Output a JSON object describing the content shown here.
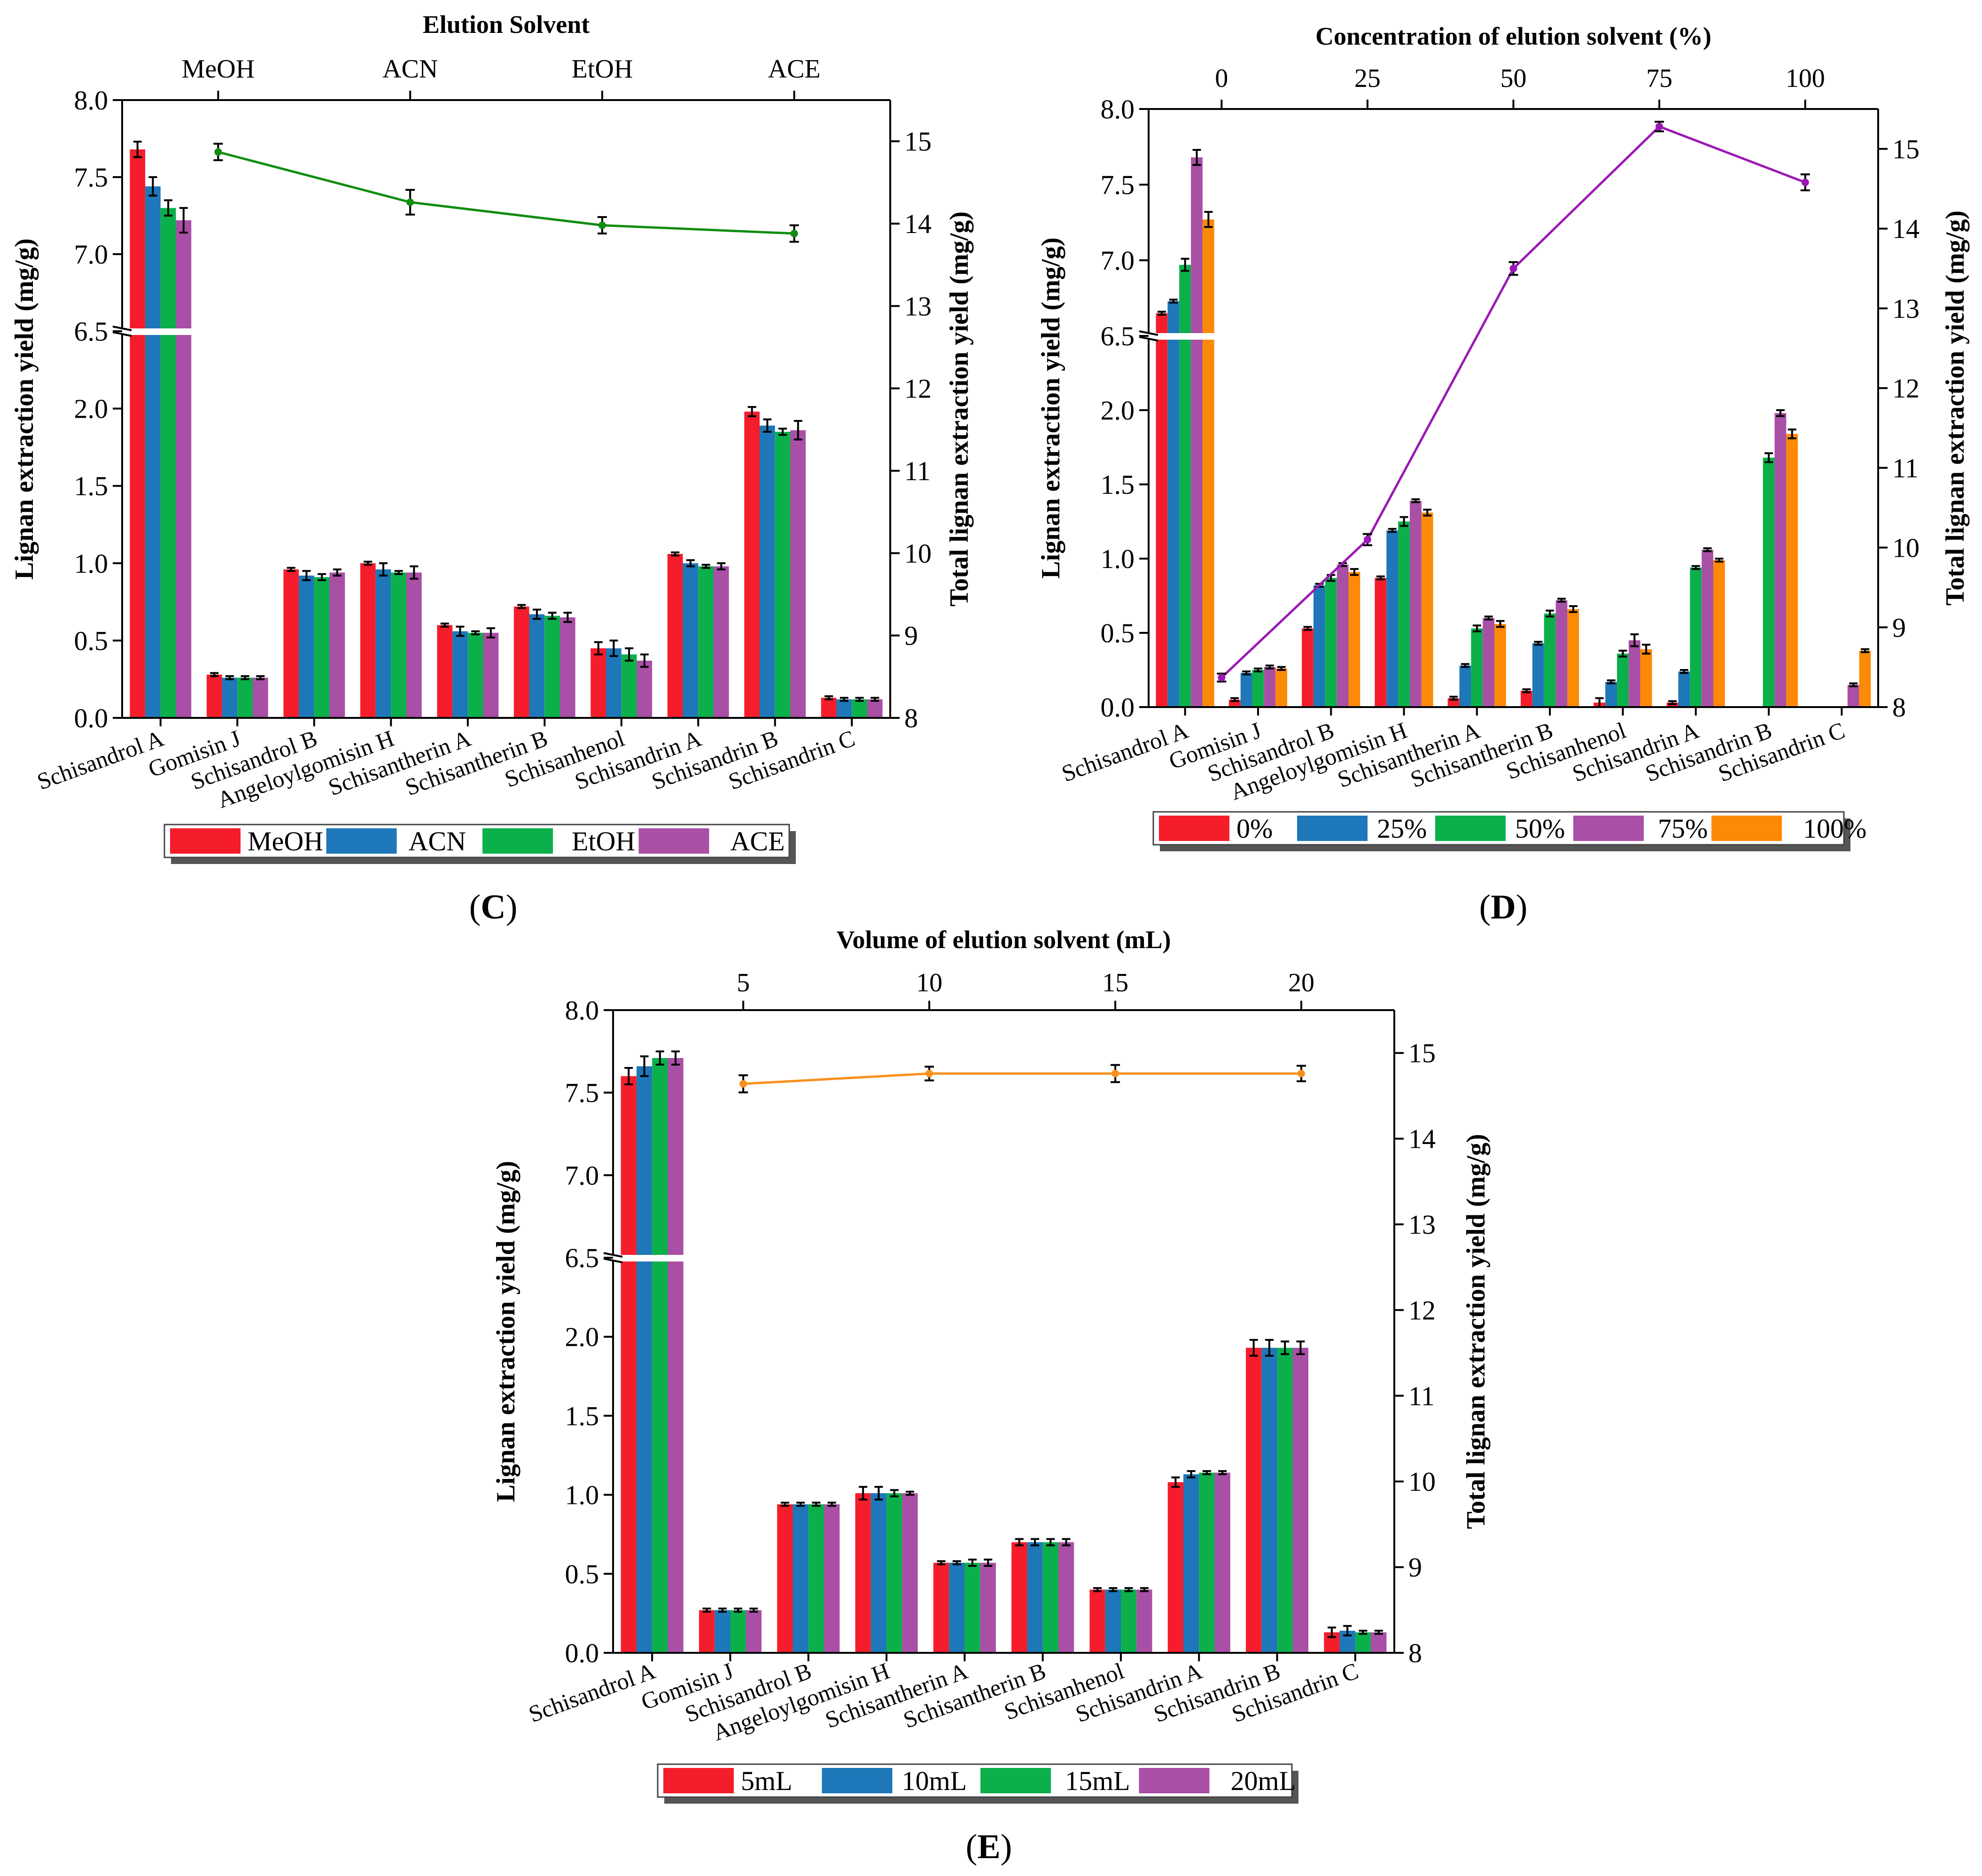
{
  "colors": {
    "red": "#f51d2b",
    "blue": "#1d77b8",
    "green": "#0bb04b",
    "purple": "#a94fa6",
    "orange": "#fd8a07"
  },
  "chart_data": [
    {
      "type": "bar",
      "panel_label": "C",
      "title": "",
      "top_axis_title": "Elution Solvent",
      "top_axis_categories": [
        "MeOH",
        "ACN",
        "EtOH",
        "ACE"
      ],
      "ylabel": "Lignan extraction yield (mg/g)",
      "y2label": "Total lignan extraction yield (mg/g)",
      "ylim_lower": [
        0,
        2.5
      ],
      "ylim_upper": [
        6.5,
        8.0
      ],
      "y_ticks": [
        "0.0",
        "0.5",
        "1.0",
        "1.5",
        "2.0",
        "6.5",
        "7.0",
        "7.5",
        "8.0"
      ],
      "y2lim": [
        8,
        15.5
      ],
      "y2_ticks": [
        "8",
        "9",
        "10",
        "11",
        "12",
        "13",
        "14",
        "15"
      ],
      "categories": [
        "Schisandrol A",
        "Gomisin J",
        "Schisandrol B",
        "Angeloylgomisin H",
        "Schisantherin A",
        "Schisantherin B",
        "Schisanhenol",
        "Schisandrin A",
        "Schisandrin B",
        "Schisandrin C"
      ],
      "series": [
        {
          "name": "MeOH",
          "color": "#f51d2b",
          "values": [
            7.68,
            0.28,
            0.96,
            1.0,
            0.6,
            0.72,
            0.45,
            1.06,
            1.98,
            0.13
          ],
          "errors": [
            0.05,
            0.01,
            0.01,
            0.01,
            0.01,
            0.01,
            0.04,
            0.01,
            0.03,
            0.01
          ]
        },
        {
          "name": "ACN",
          "color": "#1d77b8",
          "values": [
            7.44,
            0.26,
            0.92,
            0.96,
            0.56,
            0.67,
            0.45,
            1.0,
            1.89,
            0.12
          ],
          "errors": [
            0.06,
            0.01,
            0.03,
            0.04,
            0.03,
            0.03,
            0.05,
            0.02,
            0.04,
            0.01
          ]
        },
        {
          "name": "EtOH",
          "color": "#0bb04b",
          "values": [
            7.3,
            0.26,
            0.91,
            0.94,
            0.55,
            0.66,
            0.41,
            0.98,
            1.85,
            0.12
          ],
          "errors": [
            0.05,
            0.01,
            0.02,
            0.01,
            0.01,
            0.02,
            0.04,
            0.01,
            0.02,
            0.01
          ]
        },
        {
          "name": "ACE",
          "color": "#a94fa6",
          "values": [
            7.22,
            0.26,
            0.94,
            0.94,
            0.55,
            0.65,
            0.37,
            0.98,
            1.86,
            0.12
          ],
          "errors": [
            0.08,
            0.01,
            0.02,
            0.04,
            0.03,
            0.03,
            0.04,
            0.02,
            0.06,
            0.01
          ]
        }
      ],
      "line": {
        "name": "Total",
        "color": "#118d11",
        "x": [
          "MeOH",
          "ACN",
          "EtOH",
          "ACE"
        ],
        "values": [
          14.87,
          14.26,
          13.98,
          13.88
        ],
        "errors": [
          0.1,
          0.15,
          0.1,
          0.1
        ]
      },
      "legend": [
        "MeOH",
        "ACN",
        "EtOH",
        "ACE"
      ],
      "legend_position": "bottom"
    },
    {
      "type": "bar",
      "panel_label": "D",
      "title": "",
      "top_axis_title": "Concentration of elution solvent (%)",
      "top_axis_ticks": [
        "0",
        "25",
        "50",
        "75",
        "100"
      ],
      "top_axis_range": [
        -12.5,
        112.5
      ],
      "ylabel": "Lignan extraction yield (mg/g)",
      "y2label": "Total lignan extraction yield (mg/g)",
      "ylim_lower": [
        0,
        2.5
      ],
      "ylim_upper": [
        6.5,
        8.0
      ],
      "y_ticks": [
        "0.0",
        "0.5",
        "1.0",
        "1.5",
        "2.0",
        "6.5",
        "7.0",
        "7.5",
        "8.0"
      ],
      "y2lim": [
        8,
        15.5
      ],
      "y2_ticks": [
        "8",
        "9",
        "10",
        "11",
        "12",
        "13",
        "14",
        "15"
      ],
      "categories": [
        "Schisandrol A",
        "Gomisin J",
        "Schisandrol B",
        "Angeloylgomisin H",
        "Schisantherin A",
        "Schisantherin B",
        "Schisanhenol",
        "Schisandrin A",
        "Schisandrin B",
        "Schisandrin C"
      ],
      "series": [
        {
          "name": "0%",
          "color": "#f51d2b",
          "values": [
            6.65,
            0.05,
            0.53,
            0.87,
            0.06,
            0.11,
            0.03,
            0.03,
            0,
            0
          ],
          "errors": [
            0.01,
            0.01,
            0.01,
            0.01,
            0.01,
            0.01,
            0.03,
            0.01,
            0,
            0
          ]
        },
        {
          "name": "25%",
          "color": "#1d77b8",
          "values": [
            6.73,
            0.23,
            0.82,
            1.19,
            0.28,
            0.43,
            0.17,
            0.24,
            0,
            0
          ],
          "errors": [
            0.01,
            0.01,
            0.01,
            0.01,
            0.01,
            0.01,
            0.01,
            0.01,
            0,
            0
          ]
        },
        {
          "name": "50%",
          "color": "#0bb04b",
          "values": [
            6.97,
            0.25,
            0.87,
            1.25,
            0.53,
            0.63,
            0.36,
            0.94,
            1.68,
            0
          ],
          "errors": [
            0.04,
            0.01,
            0.02,
            0.03,
            0.02,
            0.02,
            0.02,
            0.01,
            0.03,
            0
          ]
        },
        {
          "name": "75%",
          "color": "#a94fa6",
          "values": [
            7.68,
            0.27,
            0.96,
            1.39,
            0.6,
            0.72,
            0.45,
            1.06,
            1.98,
            0.15
          ],
          "errors": [
            0.05,
            0.01,
            0.01,
            0.01,
            0.01,
            0.01,
            0.04,
            0.01,
            0.02,
            0.01
          ]
        },
        {
          "name": "100%",
          "color": "#fd8a07",
          "values": [
            7.27,
            0.26,
            0.91,
            1.31,
            0.56,
            0.66,
            0.39,
            0.99,
            1.84,
            0.38
          ],
          "errors": [
            0.05,
            0.01,
            0.02,
            0.02,
            0.02,
            0.02,
            0.03,
            0.01,
            0.03,
            0.01
          ]
        }
      ],
      "line": {
        "name": "Total",
        "color": "#9c18b4",
        "x": [
          0,
          25,
          50,
          75,
          100
        ],
        "values": [
          8.37,
          10.1,
          13.5,
          15.28,
          14.58
        ],
        "errors": [
          0.05,
          0.07,
          0.08,
          0.06,
          0.1
        ]
      },
      "legend": [
        "0%",
        "25%",
        "50%",
        "75%",
        "100%"
      ],
      "legend_position": "bottom"
    },
    {
      "type": "bar",
      "panel_label": "E",
      "title": "",
      "top_axis_title": "Volume of elution solvent (mL)",
      "top_axis_ticks": [
        "5",
        "10",
        "15",
        "20"
      ],
      "top_axis_range": [
        1.5,
        22.5
      ],
      "ylabel": "Lignan extraction yield (mg/g)",
      "y2label": "Total lignan extraction yield (mg/g)",
      "ylim_lower": [
        0,
        2.5
      ],
      "ylim_upper": [
        6.5,
        8.0
      ],
      "y_ticks": [
        "0.0",
        "0.5",
        "1.0",
        "1.5",
        "2.0",
        "6.5",
        "7.0",
        "7.5",
        "8.0"
      ],
      "y2lim": [
        8,
        15.5
      ],
      "y2_ticks": [
        "8",
        "9",
        "10",
        "11",
        "12",
        "13",
        "14",
        "15"
      ],
      "categories": [
        "Schisandrol A",
        "Gomisin J",
        "Schisandrol B",
        "Angeloylgomisin H",
        "Schisantherin A",
        "Schisantherin B",
        "Schisanhenol",
        "Schisandrin A",
        "Schisandrin B",
        "Schisandrin C"
      ],
      "series": [
        {
          "name": "5mL",
          "color": "#f51d2b",
          "values": [
            7.6,
            0.27,
            0.94,
            1.01,
            0.57,
            0.7,
            0.4,
            1.08,
            1.93,
            0.13
          ],
          "errors": [
            0.05,
            0.01,
            0.01,
            0.04,
            0.01,
            0.02,
            0.01,
            0.03,
            0.05,
            0.03
          ]
        },
        {
          "name": "10mL",
          "color": "#1d77b8",
          "values": [
            7.66,
            0.27,
            0.94,
            1.01,
            0.57,
            0.7,
            0.4,
            1.13,
            1.93,
            0.14
          ],
          "errors": [
            0.06,
            0.01,
            0.01,
            0.04,
            0.01,
            0.02,
            0.01,
            0.02,
            0.05,
            0.03
          ]
        },
        {
          "name": "15mL",
          "color": "#0bb04b",
          "values": [
            7.71,
            0.27,
            0.94,
            1.01,
            0.57,
            0.7,
            0.4,
            1.14,
            1.93,
            0.13
          ],
          "errors": [
            0.04,
            0.01,
            0.01,
            0.02,
            0.02,
            0.02,
            0.01,
            0.01,
            0.04,
            0.01
          ]
        },
        {
          "name": "20mL",
          "color": "#a94fa6",
          "values": [
            7.71,
            0.27,
            0.94,
            1.01,
            0.57,
            0.7,
            0.4,
            1.14,
            1.93,
            0.13
          ],
          "errors": [
            0.04,
            0.01,
            0.01,
            0.01,
            0.02,
            0.02,
            0.01,
            0.01,
            0.04,
            0.01
          ]
        }
      ],
      "line": {
        "name": "Total",
        "color": "#f7901d",
        "x": [
          5,
          10,
          15,
          20
        ],
        "values": [
          14.64,
          14.76,
          14.76,
          14.76
        ],
        "errors": [
          0.1,
          0.08,
          0.1,
          0.09
        ]
      },
      "legend": [
        "5mL",
        "10mL",
        "15mL",
        "20mL"
      ],
      "legend_position": "bottom"
    }
  ]
}
